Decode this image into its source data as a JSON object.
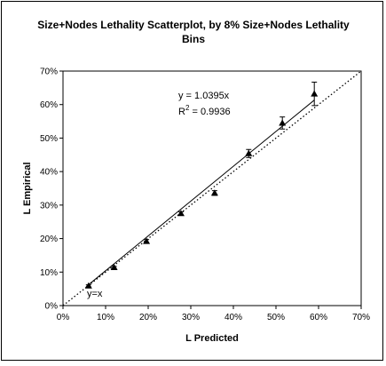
{
  "chart_data": {
    "type": "scatter",
    "title_lines": [
      "Size+Nodes Lethality Scatterplot, by 8% Size+Nodes Lethality",
      "Bins"
    ],
    "xlabel": "L Predicted",
    "ylabel": "L Empirical",
    "xlim": [
      0,
      0.7
    ],
    "ylim": [
      0,
      0.7
    ],
    "x_ticks": [
      "0%",
      "10%",
      "20%",
      "30%",
      "40%",
      "50%",
      "60%",
      "70%"
    ],
    "y_ticks": [
      "0%",
      "10%",
      "20%",
      "30%",
      "40%",
      "50%",
      "60%",
      "70%"
    ],
    "grid": false,
    "legend": "none",
    "points": [
      {
        "x": 0.06,
        "y": 0.059,
        "err": 0.003
      },
      {
        "x": 0.12,
        "y": 0.114,
        "err": 0.003
      },
      {
        "x": 0.196,
        "y": 0.192,
        "err": 0.005
      },
      {
        "x": 0.277,
        "y": 0.275,
        "err": 0.005
      },
      {
        "x": 0.356,
        "y": 0.336,
        "err": 0.007
      },
      {
        "x": 0.436,
        "y": 0.454,
        "err": 0.012
      },
      {
        "x": 0.515,
        "y": 0.545,
        "err": 0.018
      },
      {
        "x": 0.59,
        "y": 0.632,
        "err": 0.035
      }
    ],
    "trendline": {
      "slope": 1.0395,
      "x_range": [
        0.055,
        0.59
      ]
    },
    "reference_line": {
      "slope": 1,
      "label": "y=x"
    },
    "annotation": {
      "equation": "y = 1.0395x",
      "r2_prefix": "R",
      "r2_superscript": "2",
      "r2_suffix": " = 0.9936"
    },
    "colors": {
      "marker": "#000000",
      "line": "#000000",
      "background": "#ffffff"
    }
  }
}
